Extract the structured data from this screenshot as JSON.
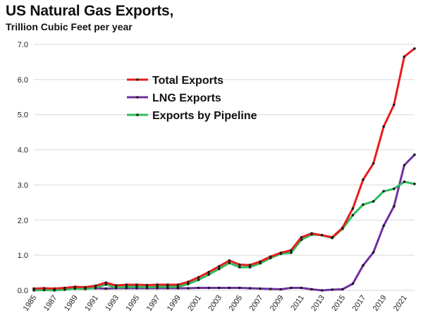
{
  "chart_data": {
    "type": "line",
    "title": "US Natural Gas Exports,",
    "subtitle": "Trillion Cubic Feet per year",
    "xlabel": "",
    "ylabel": "",
    "ylim": [
      0,
      7
    ],
    "yticks": [
      "0.0",
      "1.0",
      "2.0",
      "3.0",
      "4.0",
      "5.0",
      "6.0",
      "7.0"
    ],
    "xticks": [
      "1985",
      "1987",
      "1989",
      "1991",
      "1993",
      "1995",
      "1997",
      "1999",
      "2001",
      "2003",
      "2005",
      "2007",
      "2009",
      "2011",
      "2013",
      "2015",
      "2017",
      "2019",
      "2021"
    ],
    "grid": "horizontal",
    "legend_position": "top-center",
    "x": [
      1985,
      1986,
      1987,
      1988,
      1989,
      1990,
      1991,
      1992,
      1993,
      1994,
      1995,
      1996,
      1997,
      1998,
      1999,
      2000,
      2001,
      2002,
      2003,
      2004,
      2005,
      2006,
      2007,
      2008,
      2009,
      2010,
      2011,
      2012,
      2013,
      2014,
      2015,
      2016,
      2017,
      2018,
      2019,
      2020,
      2021,
      2022
    ],
    "series": [
      {
        "name": "Total Exports",
        "color": "#e81c1c",
        "values": [
          0.05,
          0.06,
          0.05,
          0.07,
          0.1,
          0.09,
          0.13,
          0.22,
          0.14,
          0.16,
          0.16,
          0.15,
          0.16,
          0.16,
          0.16,
          0.24,
          0.37,
          0.52,
          0.68,
          0.85,
          0.73,
          0.72,
          0.82,
          0.96,
          1.07,
          1.14,
          1.51,
          1.62,
          1.57,
          1.51,
          1.78,
          2.33,
          3.15,
          3.61,
          4.66,
          5.28,
          6.65,
          6.88
        ]
      },
      {
        "name": "LNG Exports",
        "color": "#7030a0",
        "values": [
          0.05,
          0.05,
          0.05,
          0.05,
          0.05,
          0.05,
          0.06,
          0.05,
          0.06,
          0.06,
          0.06,
          0.06,
          0.06,
          0.06,
          0.06,
          0.06,
          0.07,
          0.07,
          0.07,
          0.07,
          0.07,
          0.06,
          0.05,
          0.04,
          0.03,
          0.07,
          0.07,
          0.03,
          0.0,
          0.02,
          0.03,
          0.19,
          0.71,
          1.08,
          1.84,
          2.39,
          3.56,
          3.86
        ]
      },
      {
        "name": "Exports by Pipeline",
        "color": "#2dbd5c",
        "values": [
          0.0,
          0.01,
          0.0,
          0.02,
          0.05,
          0.04,
          0.07,
          0.17,
          0.08,
          0.1,
          0.1,
          0.09,
          0.1,
          0.1,
          0.1,
          0.18,
          0.3,
          0.45,
          0.61,
          0.78,
          0.66,
          0.66,
          0.77,
          0.92,
          1.04,
          1.07,
          1.44,
          1.59,
          1.57,
          1.49,
          1.75,
          2.14,
          2.44,
          2.53,
          2.82,
          2.89,
          3.09,
          3.03
        ]
      }
    ]
  }
}
